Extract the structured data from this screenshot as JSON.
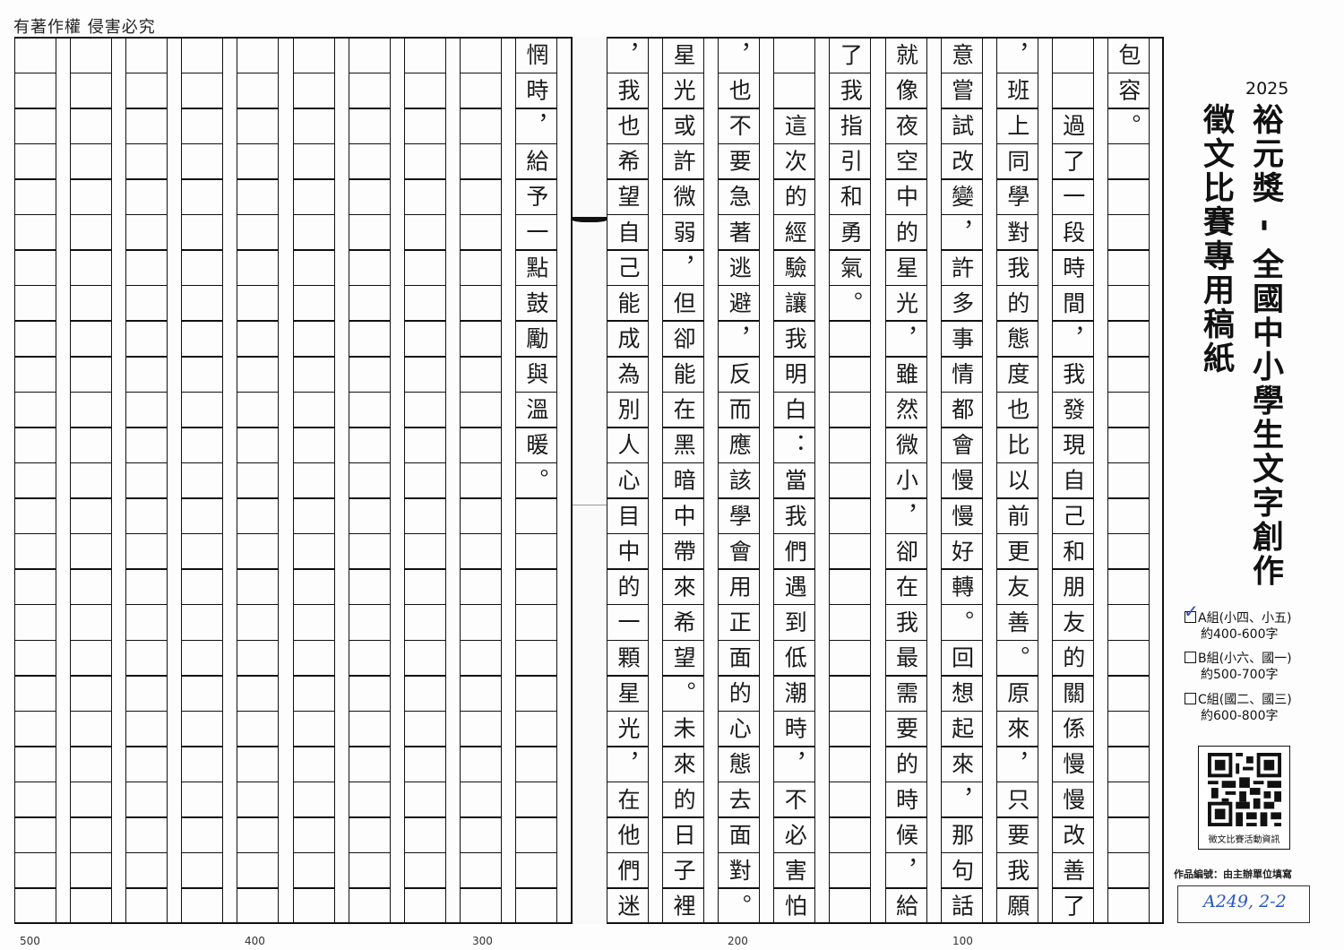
{
  "header": {
    "copyright": "有著作權  侵害必究"
  },
  "manuscript": {
    "columns": [
      "包容。",
      "　　過了一段時間，我發現自己和朋友的關係慢慢改善了",
      "，班上同學對我的態度也比以前更友善。原來，只要我願",
      "意嘗試改變，許多事情都會慢慢好轉。回想起來，那句話",
      "就像夜空中的星光，雖然微小，卻在我最需要的時候，給",
      "了我指引和勇氣。",
      "　　這次的經驗讓我明白：當我們遇到低潮時，不必害怕",
      "，也不要急著逃避，反而應該學會用正面的心態去面對。",
      "星光或許微弱，但卻能在黑暗中帶來希望。未來的日子裡",
      "，我也希望自己能成為別人心目中的一顆星光，在他們迷",
      "惘時，給予一點鼓勵與溫暖。",
      "",
      "",
      "",
      "",
      "",
      "",
      "",
      "",
      ""
    ],
    "rows_per_column": 25,
    "char_count_markers": [
      "500",
      "400",
      "300",
      "200",
      "100"
    ]
  },
  "sidebar": {
    "year": "2025",
    "title": "裕元獎 - 全國中小學生文字創作",
    "subtitle": "徵文比賽專用稿紙",
    "options": [
      {
        "label": "A組(小四、小五)",
        "words": "約400-600字",
        "checked": true
      },
      {
        "label": "B組(小六、國一)",
        "words": "約500-700字",
        "checked": false
      },
      {
        "label": "C組(國二、國三)",
        "words": "約600-800字",
        "checked": false
      }
    ],
    "check_mark": "✓",
    "qr_label": "徵文比賽活動資訊",
    "id_label": "作品編號：由主辦單位填寫",
    "id_value": "A249, 2-2",
    "check_color": "#2a4fb5"
  }
}
